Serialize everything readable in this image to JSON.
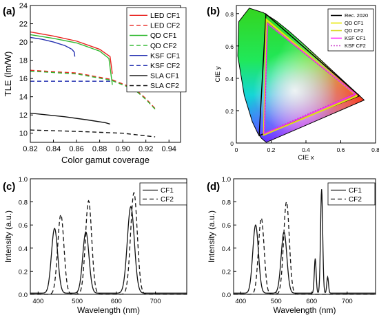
{
  "colors": {
    "led": "#e8231f",
    "qd": "#2fb82f",
    "ksf": "#2430b0",
    "sla": "#111111",
    "rec2020": "#000000",
    "qd_tri": "#e8e800",
    "ksf_tri": "#ff22ff",
    "ksf2_tri": "#cc44cc"
  },
  "chart_data": [
    {
      "type": "line",
      "panel_label": "(a)",
      "xlabel": "Color gamut coverage",
      "ylabel": "TLE (lm/W)",
      "xlim": [
        0.82,
        0.95
      ],
      "ylim": [
        9,
        24
      ],
      "xticks": [
        0.82,
        0.84,
        0.86,
        0.88,
        0.9,
        0.92,
        0.94
      ],
      "xtick_labels": [
        "0.82",
        "0.84",
        "0.86",
        "0.88",
        "0.90",
        "0.92",
        "0.94"
      ],
      "yticks": [
        10,
        12,
        14,
        16,
        18,
        20,
        22,
        24
      ],
      "ytick_labels": [
        "10",
        "12",
        "14",
        "16",
        "18",
        "20",
        "22",
        "24"
      ],
      "legend_position": "top-right",
      "series": [
        {
          "name": "LED CF1",
          "color": "#e8231f",
          "dash": "solid",
          "x": [
            0.82,
            0.84,
            0.86,
            0.88,
            0.889,
            0.891
          ],
          "y": [
            21.1,
            20.65,
            20.1,
            19.2,
            18.4,
            16.5
          ]
        },
        {
          "name": "LED CF2",
          "color": "#e8231f",
          "dash": "dashed",
          "x": [
            0.82,
            0.86,
            0.89,
            0.91,
            0.92,
            0.928
          ],
          "y": [
            16.9,
            16.6,
            15.9,
            14.9,
            13.8,
            12.7
          ]
        },
        {
          "name": "QD CF1",
          "color": "#2fb82f",
          "dash": "solid",
          "x": [
            0.82,
            0.84,
            0.86,
            0.88,
            0.888,
            0.891
          ],
          "y": [
            20.8,
            20.4,
            19.9,
            19.0,
            18.2,
            15.3
          ]
        },
        {
          "name": "QD CF2",
          "color": "#2fb82f",
          "dash": "dashed",
          "x": [
            0.82,
            0.86,
            0.89,
            0.91,
            0.92,
            0.929
          ],
          "y": [
            16.8,
            16.5,
            15.8,
            14.8,
            13.7,
            12.5
          ]
        },
        {
          "name": "KSF CF1",
          "color": "#2430b0",
          "dash": "solid",
          "x": [
            0.82,
            0.83,
            0.84,
            0.85,
            0.856,
            0.858,
            0.8585
          ],
          "y": [
            20.5,
            20.3,
            20.0,
            19.6,
            19.2,
            18.9,
            18.4
          ]
        },
        {
          "name": "KSF CF2",
          "color": "#2430b0",
          "dash": "dashed",
          "x": [
            0.82,
            0.89
          ],
          "y": [
            15.7,
            15.7
          ]
        },
        {
          "name": "SLA CF1",
          "color": "#111111",
          "dash": "solid",
          "x": [
            0.82,
            0.85,
            0.87,
            0.885,
            0.889
          ],
          "y": [
            12.2,
            11.8,
            11.45,
            11.15,
            11.0
          ]
        },
        {
          "name": "SLA CF2",
          "color": "#111111",
          "dash": "dashed",
          "x": [
            0.82,
            0.86,
            0.9,
            0.928
          ],
          "y": [
            10.35,
            10.2,
            10.0,
            9.6
          ]
        }
      ]
    },
    {
      "type": "scatter",
      "panel_label": "(b)",
      "xlabel": "CIE x",
      "ylabel": "CIE y",
      "xlim": [
        0,
        0.8
      ],
      "ylim": [
        0,
        0.85
      ],
      "xticks": [
        0,
        0.2,
        0.4,
        0.6,
        0.8
      ],
      "xtick_labels": [
        "0",
        "0.2",
        "0.4",
        "0.6",
        "0.8"
      ],
      "yticks": [
        0,
        0.2,
        0.4,
        0.6,
        0.8
      ],
      "ytick_labels": [
        "0",
        "0.2",
        "0.4",
        "0.6",
        "0.8"
      ],
      "legend_position": "top-right",
      "locus": {
        "x": [
          0.1741,
          0.1738,
          0.1733,
          0.1726,
          0.1714,
          0.1689,
          0.1644,
          0.1566,
          0.144,
          0.1241,
          0.0913,
          0.0454,
          0.0082,
          0.0139,
          0.0743,
          0.1547,
          0.2296,
          0.3016,
          0.3731,
          0.4441,
          0.5125,
          0.5752,
          0.627,
          0.6658,
          0.6915,
          0.7079,
          0.719,
          0.7347
        ],
        "y": [
          0.005,
          0.0049,
          0.0048,
          0.0048,
          0.0051,
          0.0069,
          0.0109,
          0.0177,
          0.0297,
          0.0578,
          0.1327,
          0.295,
          0.5384,
          0.7502,
          0.8338,
          0.8059,
          0.7543,
          0.6923,
          0.6245,
          0.5547,
          0.4866,
          0.4242,
          0.3725,
          0.334,
          0.3083,
          0.292,
          0.2809,
          0.2653
        ]
      },
      "series": [
        {
          "name": "Rec. 2020",
          "color": "#000000",
          "dash": "solid",
          "x": [
            0.708,
            0.17,
            0.131,
            0.708
          ],
          "y": [
            0.292,
            0.797,
            0.046,
            0.292
          ]
        },
        {
          "name": "QD CF1",
          "color": "#e8e800",
          "dash": "solid",
          "x": [
            0.695,
            0.172,
            0.156,
            0.695
          ],
          "y": [
            0.29,
            0.765,
            0.048,
            0.29
          ]
        },
        {
          "name": "QD CF2",
          "color": "#d8d820",
          "dash": "solid",
          "x": [
            0.69,
            0.175,
            0.158,
            0.69
          ],
          "y": [
            0.292,
            0.755,
            0.052,
            0.292
          ]
        },
        {
          "name": "KSF CF1",
          "color": "#ff22ff",
          "dash": "solid",
          "x": [
            0.686,
            0.178,
            0.16,
            0.686
          ],
          "y": [
            0.302,
            0.74,
            0.058,
            0.302
          ]
        },
        {
          "name": "KSF CF2",
          "color": "#cc44cc",
          "dash": "dotted",
          "x": [
            0.68,
            0.18,
            0.162,
            0.68
          ],
          "y": [
            0.305,
            0.735,
            0.062,
            0.305
          ]
        }
      ]
    },
    {
      "type": "line",
      "panel_label": "(c)",
      "xlabel": "Wavelength (nm)",
      "ylabel": "Intensity (a.u.)",
      "xlim": [
        380,
        780
      ],
      "ylim": [
        0,
        1.0
      ],
      "xticks": [
        400,
        500,
        600,
        700
      ],
      "xtick_labels": [
        "400",
        "500",
        "600",
        "700"
      ],
      "yticks": [
        0,
        0.2,
        0.4,
        0.6,
        0.8,
        1.0
      ],
      "ytick_labels": [
        "0.0",
        "0.2",
        "0.4",
        "0.6",
        "0.8",
        "1.0"
      ],
      "legend_position": "top-right",
      "series": [
        {
          "name": "CF1",
          "color": "#111111",
          "dash": "solid",
          "peaks": [
            {
              "center": 442,
              "height": 0.56,
              "width": 8
            },
            {
              "center": 522,
              "height": 0.53,
              "width": 8
            },
            {
              "center": 637,
              "height": 0.75,
              "width": 9
            }
          ],
          "baseline": 0.01
        },
        {
          "name": "CF2",
          "color": "#111111",
          "dash": "dashed",
          "peaks": [
            {
              "center": 458,
              "height": 0.69,
              "width": 8
            },
            {
              "center": 529,
              "height": 0.81,
              "width": 8
            },
            {
              "center": 645,
              "height": 0.88,
              "width": 8.5
            }
          ],
          "baseline": 0.0
        }
      ]
    },
    {
      "type": "line",
      "panel_label": "(d)",
      "xlabel": "Wavelength (nm)",
      "ylabel": "Intensity (a.u.)",
      "xlim": [
        380,
        780
      ],
      "ylim": [
        0,
        1.0
      ],
      "xticks": [
        400,
        500,
        600,
        700
      ],
      "xtick_labels": [
        "400",
        "500",
        "600",
        "700"
      ],
      "yticks": [
        0,
        0.2,
        0.4,
        0.6,
        0.8,
        1.0
      ],
      "ytick_labels": [
        "0.0",
        "0.2",
        "0.4",
        "0.6",
        "0.8",
        "1.0"
      ],
      "legend_position": "top-right",
      "series": [
        {
          "name": "CF1",
          "color": "#111111",
          "dash": "solid",
          "peaks": [
            {
              "center": 442,
              "height": 0.59,
              "width": 8
            },
            {
              "center": 522,
              "height": 0.53,
              "width": 8
            },
            {
              "center": 610,
              "height": 0.3,
              "width": 2.6
            },
            {
              "center": 628,
              "height": 0.9,
              "width": 3.0
            },
            {
              "center": 645,
              "height": 0.14,
              "width": 2.4
            }
          ],
          "baseline": 0.01
        },
        {
          "name": "CF2",
          "color": "#111111",
          "dash": "dashed",
          "peaks": [
            {
              "center": 458,
              "height": 0.66,
              "width": 8
            },
            {
              "center": 529,
              "height": 0.8,
              "width": 8
            }
          ],
          "baseline": 0.0
        }
      ]
    }
  ]
}
